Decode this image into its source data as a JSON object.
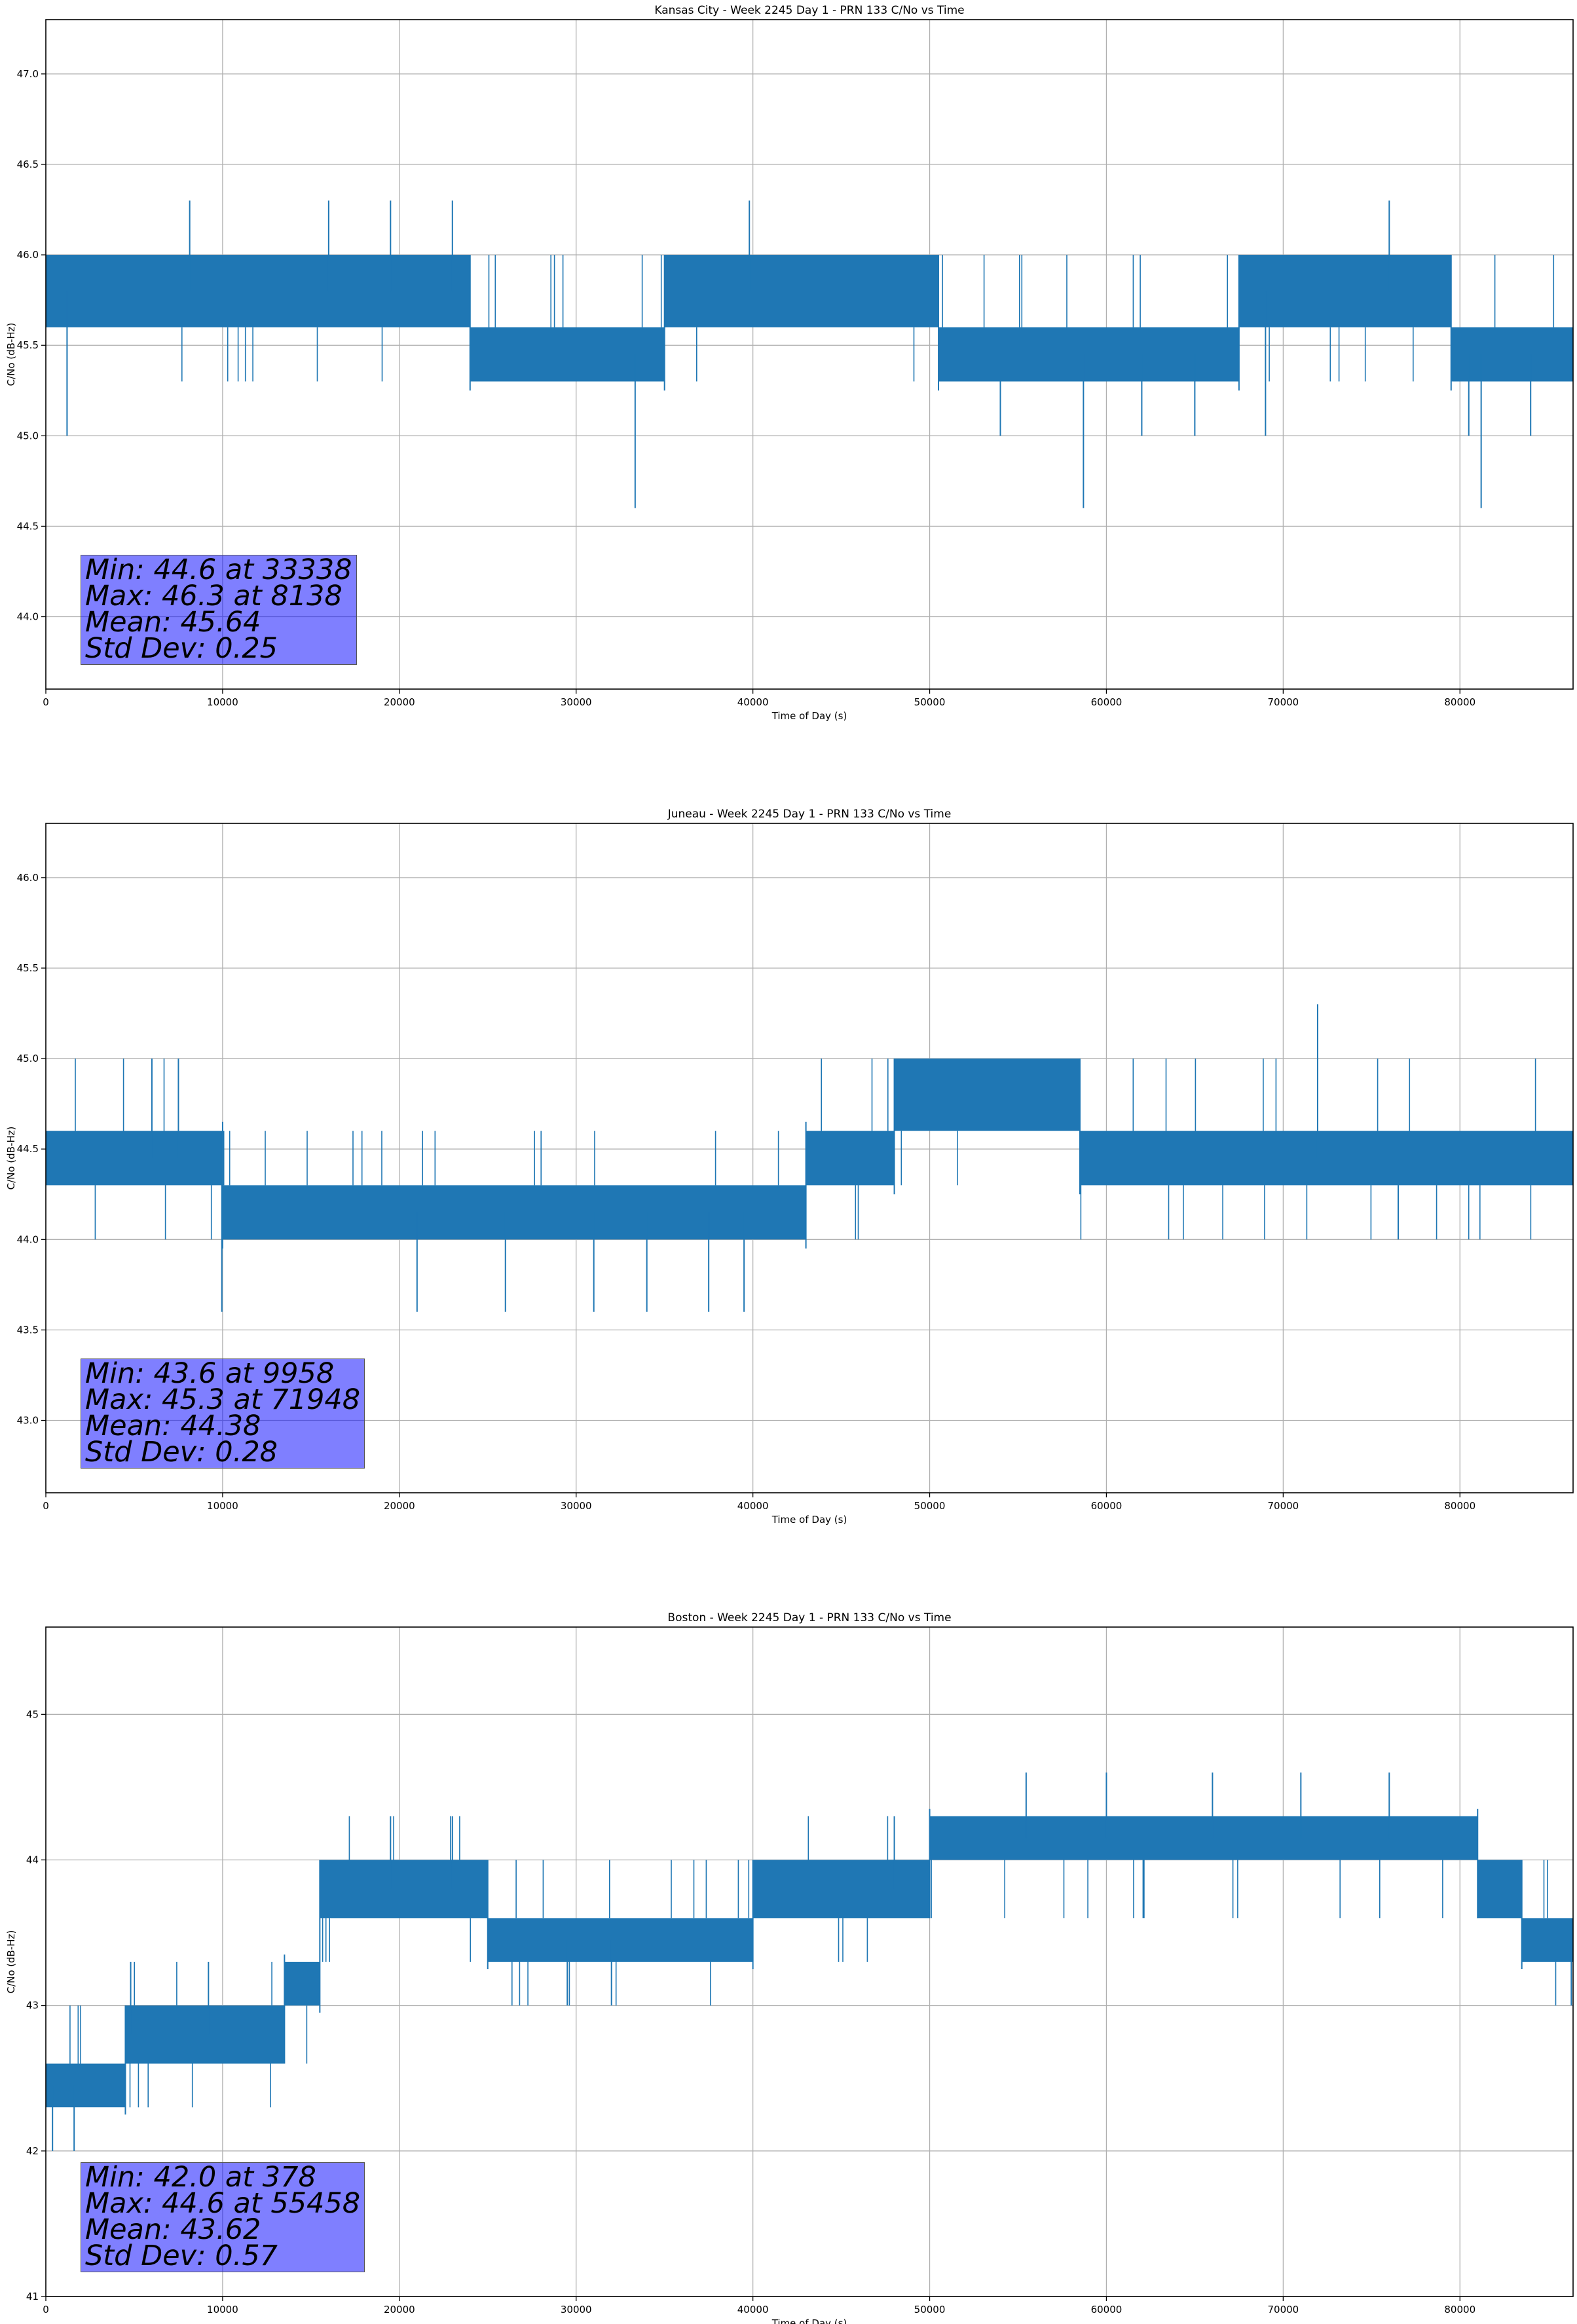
{
  "chart_data": [
    {
      "type": "line",
      "title": "Kansas City - Week 2245 Day 1 - PRN 133 C/No vs Time",
      "xlabel": "Time of Day (s)",
      "ylabel": "C/No (dB-Hz)",
      "xlim": [
        0,
        86400
      ],
      "ylim": [
        43.6,
        47.3
      ],
      "xticks": [
        "0",
        "10000",
        "20000",
        "30000",
        "40000",
        "50000",
        "60000",
        "70000",
        "80000"
      ],
      "yticks": [
        "44.0",
        "44.5",
        "45.0",
        "45.5",
        "46.0",
        "46.5",
        "47.0"
      ],
      "grid": true,
      "color": "#1f77b4",
      "levels": [
        45.3,
        45.6,
        46.0
      ],
      "segments": [
        {
          "x": [
            0,
            24000
          ],
          "center": 45.8
        },
        {
          "x": [
            24000,
            35000
          ],
          "center": 45.45
        },
        {
          "x": [
            35000,
            50500
          ],
          "center": 45.8
        },
        {
          "x": [
            50500,
            67500
          ],
          "center": 45.45
        },
        {
          "x": [
            67500,
            79500
          ],
          "center": 45.8
        },
        {
          "x": [
            79500,
            86400
          ],
          "center": 45.45
        }
      ],
      "spikes": [
        {
          "x": 8138,
          "y": 46.3
        },
        {
          "x": 16000,
          "y": 46.3
        },
        {
          "x": 19500,
          "y": 46.3
        },
        {
          "x": 23000,
          "y": 46.3
        },
        {
          "x": 39800,
          "y": 46.3
        },
        {
          "x": 76000,
          "y": 46.3
        },
        {
          "x": 1200,
          "y": 45.0
        },
        {
          "x": 33338,
          "y": 44.6
        },
        {
          "x": 54000,
          "y": 45.0
        },
        {
          "x": 58700,
          "y": 44.6
        },
        {
          "x": 62000,
          "y": 45.0
        },
        {
          "x": 65000,
          "y": 45.0
        },
        {
          "x": 69000,
          "y": 45.0
        },
        {
          "x": 80500,
          "y": 45.0
        },
        {
          "x": 81200,
          "y": 44.6
        },
        {
          "x": 84000,
          "y": 45.0
        }
      ],
      "stats": {
        "min": "Min: 44.6 at 33338",
        "max": "Max: 46.3 at 8138",
        "mean": "Mean: 45.64",
        "std": "Std Dev: 0.25"
      }
    },
    {
      "type": "line",
      "title": "Juneau - Week 2245 Day 1 - PRN 133 C/No vs Time",
      "xlabel": "Time of Day (s)",
      "ylabel": "C/No (dB-Hz)",
      "xlim": [
        0,
        86400
      ],
      "ylim": [
        42.6,
        46.3
      ],
      "xticks": [
        "0",
        "10000",
        "20000",
        "30000",
        "40000",
        "50000",
        "60000",
        "70000",
        "80000"
      ],
      "yticks": [
        "43.0",
        "43.5",
        "44.0",
        "44.5",
        "45.0",
        "45.5",
        "46.0"
      ],
      "grid": true,
      "color": "#1f77b4",
      "levels": [
        44.0,
        44.3,
        44.6,
        45.0
      ],
      "segments": [
        {
          "x": [
            0,
            10000
          ],
          "center": 44.45
        },
        {
          "x": [
            10000,
            43000
          ],
          "center": 44.15
        },
        {
          "x": [
            43000,
            48000
          ],
          "center": 44.45
        },
        {
          "x": [
            48000,
            58500
          ],
          "center": 44.8
        },
        {
          "x": [
            58500,
            86400
          ],
          "center": 44.45
        }
      ],
      "spikes": [
        {
          "x": 6000,
          "y": 45.0
        },
        {
          "x": 7500,
          "y": 45.0
        },
        {
          "x": 71948,
          "y": 45.3
        },
        {
          "x": 9958,
          "y": 43.6
        },
        {
          "x": 21000,
          "y": 43.6
        },
        {
          "x": 26000,
          "y": 43.6
        },
        {
          "x": 31000,
          "y": 43.6
        },
        {
          "x": 34000,
          "y": 43.6
        },
        {
          "x": 37500,
          "y": 43.6
        },
        {
          "x": 39500,
          "y": 43.6
        }
      ],
      "stats": {
        "min": "Min: 43.6 at 9958",
        "max": "Max: 45.3 at 71948",
        "mean": "Mean: 44.38",
        "std": "Std Dev: 0.28"
      }
    },
    {
      "type": "line",
      "title": "Boston - Week 2245 Day 1 - PRN 133 C/No vs Time",
      "xlabel": "Time of Day (s)",
      "ylabel": "C/No (dB-Hz)",
      "xlim": [
        0,
        86400
      ],
      "ylim": [
        41.0,
        45.6
      ],
      "xticks": [
        "0",
        "10000",
        "20000",
        "30000",
        "40000",
        "50000",
        "60000",
        "70000",
        "80000"
      ],
      "yticks": [
        "41",
        "42",
        "43",
        "44",
        "45"
      ],
      "grid": true,
      "color": "#1f77b4",
      "levels": [
        42.3,
        42.6,
        43.0,
        43.3,
        43.6,
        44.0,
        44.3
      ],
      "segments": [
        {
          "x": [
            0,
            4500
          ],
          "center": 42.45
        },
        {
          "x": [
            4500,
            13500
          ],
          "center": 42.8
        },
        {
          "x": [
            13500,
            15500
          ],
          "center": 43.15
        },
        {
          "x": [
            15500,
            25000
          ],
          "center": 43.8
        },
        {
          "x": [
            25000,
            40000
          ],
          "center": 43.45
        },
        {
          "x": [
            40000,
            50000
          ],
          "center": 43.8
        },
        {
          "x": [
            50000,
            81000
          ],
          "center": 44.15
        },
        {
          "x": [
            81000,
            83500
          ],
          "center": 43.8
        },
        {
          "x": [
            83500,
            86400
          ],
          "center": 43.45
        }
      ],
      "spikes": [
        {
          "x": 378,
          "y": 42.0
        },
        {
          "x": 1600,
          "y": 42.0
        },
        {
          "x": 4800,
          "y": 43.3
        },
        {
          "x": 9200,
          "y": 43.3
        },
        {
          "x": 19500,
          "y": 44.3
        },
        {
          "x": 23000,
          "y": 44.3
        },
        {
          "x": 29500,
          "y": 43.0
        },
        {
          "x": 32000,
          "y": 43.0
        },
        {
          "x": 48000,
          "y": 44.3
        },
        {
          "x": 55458,
          "y": 44.6
        },
        {
          "x": 60000,
          "y": 44.6
        },
        {
          "x": 66000,
          "y": 44.6
        },
        {
          "x": 71000,
          "y": 44.6
        },
        {
          "x": 76000,
          "y": 44.6
        },
        {
          "x": 86300,
          "y": 43.0
        }
      ],
      "stats": {
        "min": "Min: 42.0 at 378",
        "max": "Max: 44.6 at 55458",
        "mean": "Mean: 43.62",
        "std": "Std Dev: 0.57"
      }
    }
  ]
}
